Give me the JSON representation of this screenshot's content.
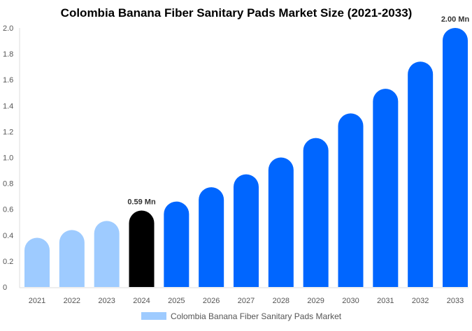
{
  "chart_data": {
    "type": "bar",
    "title": "Colombia Banana Fiber Sanitary Pads Market Size (2021-2033)",
    "xlabel": "",
    "ylabel": "",
    "categories": [
      "2021",
      "2022",
      "2023",
      "2024",
      "2025",
      "2026",
      "2027",
      "2028",
      "2029",
      "2030",
      "2031",
      "2032",
      "2033"
    ],
    "series": [
      {
        "name": "Colombia Banana Fiber Sanitary Pads Market",
        "values": [
          0.38,
          0.44,
          0.51,
          0.59,
          0.66,
          0.77,
          0.87,
          1.0,
          1.15,
          1.34,
          1.53,
          1.74,
          2.0
        ]
      }
    ],
    "ylim": [
      0,
      2.0
    ],
    "yticks": [
      "0",
      "0.2",
      "0.4",
      "0.6",
      "0.8",
      "1.0",
      "1.2",
      "1.4",
      "1.6",
      "1.8",
      "2.0"
    ],
    "data_labels": [
      {
        "category": "2024",
        "text": "0.59 Mn"
      },
      {
        "category": "2033",
        "text": "2.00 Mn"
      }
    ],
    "grid": false,
    "legend_position": "bottom",
    "colors": {
      "historical": "#9ecbff",
      "current": "#000000",
      "forecast": "#0066ff",
      "legend": "#9ecbff"
    }
  }
}
